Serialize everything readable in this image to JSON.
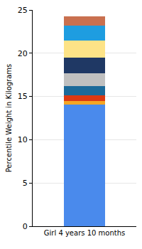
{
  "chart_data": {
    "type": "bar",
    "stacked": true,
    "grid": true,
    "y_label": "Percentile Weight in Kilograms",
    "categories": [
      "Girl 4 years 10 months"
    ],
    "ylim": [
      0,
      25
    ],
    "yticks": [
      0,
      5,
      10,
      15,
      20,
      25
    ],
    "series": [
      {
        "color": "#4a8aec",
        "values": [
          14.1
        ]
      },
      {
        "color": "#f5a623",
        "values": [
          0.4
        ]
      },
      {
        "color": "#dc3912",
        "values": [
          0.6
        ]
      },
      {
        "color": "#1c6a9a",
        "values": [
          1.1
        ]
      },
      {
        "color": "#c0c0c0",
        "values": [
          1.5
        ]
      },
      {
        "color": "#1f3864",
        "values": [
          1.8
        ]
      },
      {
        "color": "#fde387",
        "values": [
          2.0
        ]
      },
      {
        "color": "#1e9de0",
        "values": [
          1.7
        ]
      },
      {
        "color": "#c9704f",
        "values": [
          1.1
        ]
      }
    ]
  }
}
